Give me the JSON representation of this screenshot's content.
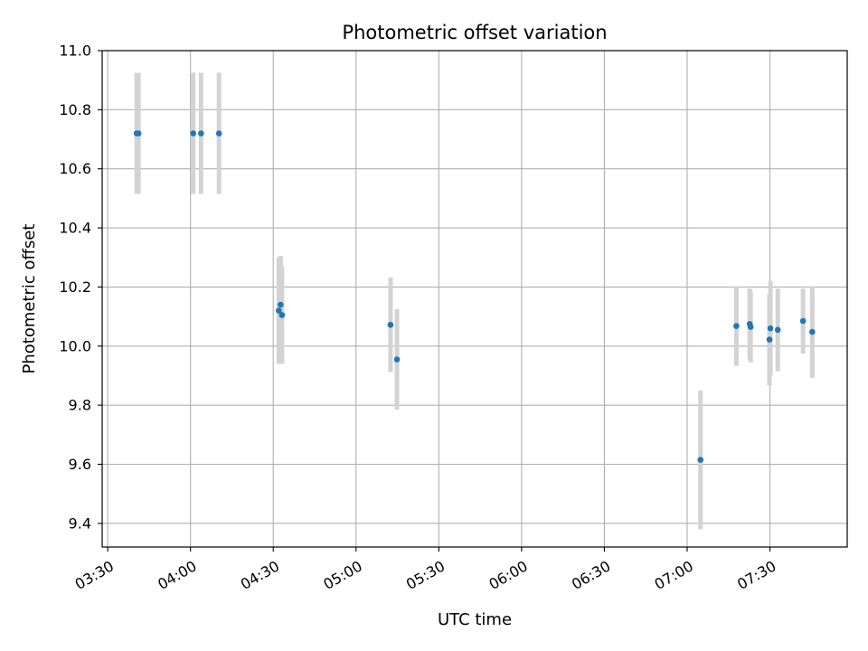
{
  "chart_data": {
    "type": "scatter",
    "title": "Photometric offset variation",
    "xlabel": "UTC time",
    "ylabel": "Photometric offset",
    "x_unit": "UTC time (HH:MM)",
    "xlim": [
      "03:28",
      "07:58"
    ],
    "ylim": [
      9.32,
      11.0
    ],
    "xticks": [
      "03:30",
      "04:00",
      "04:30",
      "05:00",
      "05:30",
      "06:00",
      "06:30",
      "07:00",
      "07:30"
    ],
    "yticks": [
      "9.4",
      "9.6",
      "9.8",
      "10.0",
      "10.2",
      "10.4",
      "10.6",
      "10.8",
      "11.0"
    ],
    "grid": true,
    "colors": {
      "point": "#1f77b4",
      "errorbar": "#d3d3d3",
      "grid": "#b0b0b0"
    },
    "series": [
      {
        "points": [
          {
            "x": "03:40:30",
            "y": 10.72,
            "err": 0.205
          },
          {
            "x": "03:41:10",
            "y": 10.72,
            "err": 0.205
          },
          {
            "x": "04:01:00",
            "y": 10.72,
            "err": 0.205
          },
          {
            "x": "04:03:50",
            "y": 10.72,
            "err": 0.205
          },
          {
            "x": "04:10:20",
            "y": 10.72,
            "err": 0.205
          },
          {
            "x": "04:32:00",
            "y": 10.12,
            "err": 0.18
          },
          {
            "x": "04:32:40",
            "y": 10.14,
            "err": 0.165
          },
          {
            "x": "04:33:10",
            "y": 10.105,
            "err": 0.165
          },
          {
            "x": "05:12:30",
            "y": 10.072,
            "err": 0.16
          },
          {
            "x": "05:14:50",
            "y": 9.955,
            "err": 0.17
          },
          {
            "x": "07:04:50",
            "y": 9.615,
            "err": 0.235
          },
          {
            "x": "07:17:50",
            "y": 10.068,
            "err": 0.135
          },
          {
            "x": "07:22:40",
            "y": 10.075,
            "err": 0.12
          },
          {
            "x": "07:23:00",
            "y": 10.065,
            "err": 0.12
          },
          {
            "x": "07:29:50",
            "y": 10.022,
            "err": 0.155
          },
          {
            "x": "07:30:10",
            "y": 10.06,
            "err": 0.16
          },
          {
            "x": "07:32:50",
            "y": 10.055,
            "err": 0.14
          },
          {
            "x": "07:42:00",
            "y": 10.085,
            "err": 0.11
          },
          {
            "x": "07:45:20",
            "y": 10.048,
            "err": 0.155
          }
        ]
      }
    ]
  }
}
